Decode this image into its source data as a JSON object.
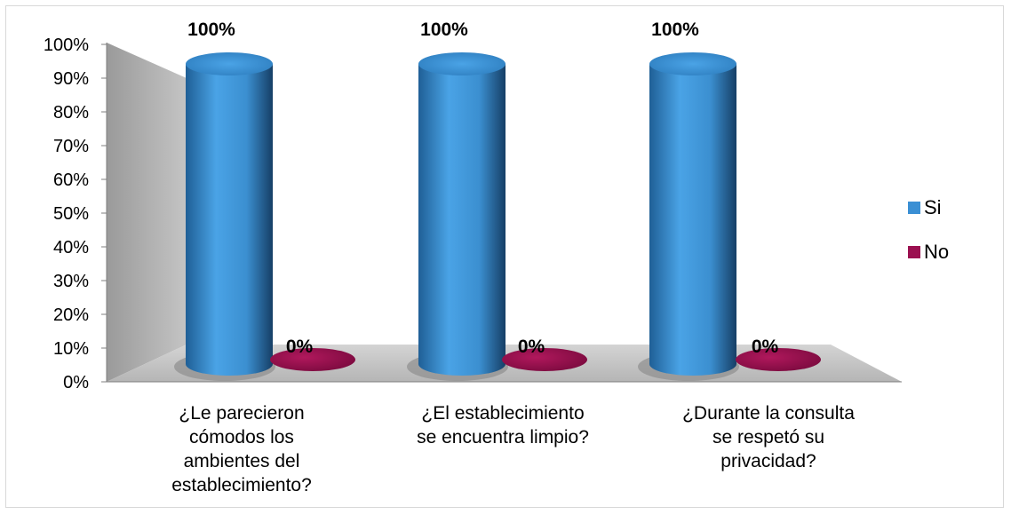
{
  "chart_data": {
    "type": "bar",
    "style": "3d-cylinder",
    "categories": [
      [
        "¿Le parecieron",
        "cómodos los",
        "ambientes del",
        "establecimiento?"
      ],
      [
        "¿El establecimiento",
        "se encuentra limpio?"
      ],
      [
        "¿Durante la consulta",
        "se respetó su",
        "privacidad?"
      ]
    ],
    "series": [
      {
        "name": "Si",
        "values": [
          100,
          100,
          100
        ],
        "labels": [
          "100%",
          "100%",
          "100%"
        ],
        "color": "#3a8fd4"
      },
      {
        "name": "No",
        "values": [
          0,
          0,
          0
        ],
        "labels": [
          "0%",
          "0%",
          "0%"
        ],
        "color": "#9b1050"
      }
    ],
    "yticks": [
      "0%",
      "10%",
      "20%",
      "30%",
      "40%",
      "50%",
      "60%",
      "70%",
      "80%",
      "90%",
      "100%"
    ],
    "ylim": [
      0,
      100
    ],
    "legend_position": "right",
    "grid": false
  }
}
